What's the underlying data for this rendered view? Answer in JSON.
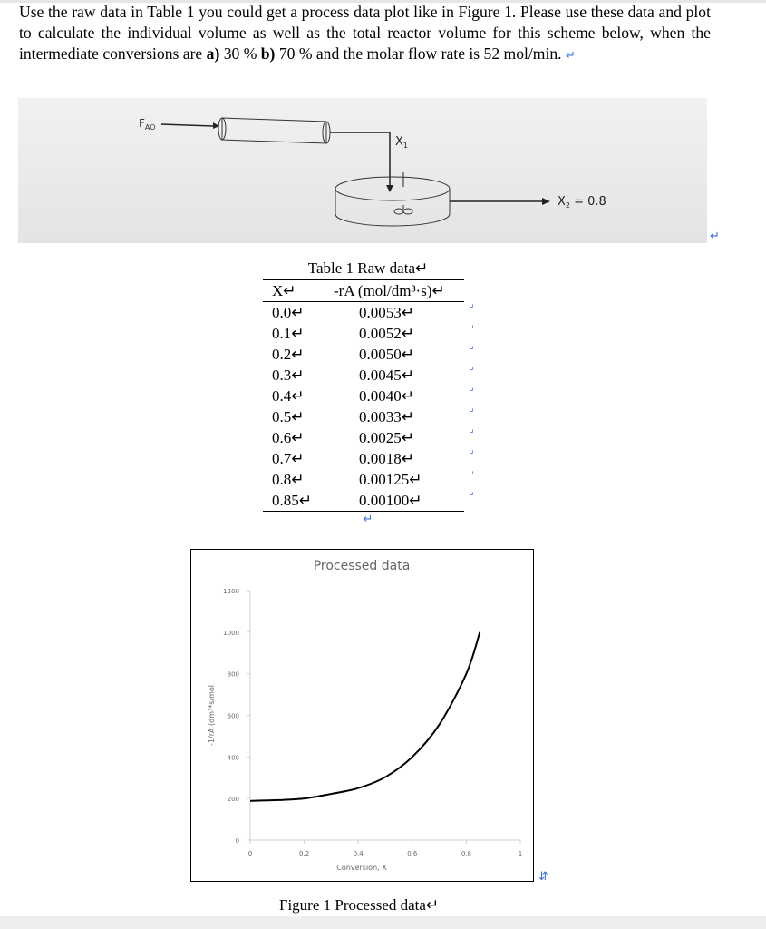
{
  "paragraph": {
    "text": "Use the raw data in Table 1 you could get a process data plot like in Figure 1. Please use these data and plot to calculate the individual volume as well as the total reactor volume for this scheme below, when the intermediate conversions are ",
    "a": "a)",
    "a_text": " 30 % ",
    "b": "b)",
    "b_text": " 70 % and the molar flow rate is 52 mol/min. ",
    "return_mark": "↵"
  },
  "diagram": {
    "feed_label": "F",
    "feed_sub": "AO",
    "x1_label": "X",
    "x1_sub": "1",
    "x2_label": "X",
    "x2_sub": "2",
    "x2_value": " = 0.8"
  },
  "table": {
    "caption": "Table 1 Raw data↵",
    "headers": [
      "X↵",
      "-rA (mol/dm³·s)↵"
    ],
    "rows": [
      [
        "0.0↵",
        "0.0053↵"
      ],
      [
        "0.1↵",
        "0.0052↵"
      ],
      [
        "0.2↵",
        "0.0050↵"
      ],
      [
        "0.3↵",
        "0.0045↵"
      ],
      [
        "0.4↵",
        "0.0040↵"
      ],
      [
        "0.5↵",
        "0.0033↵"
      ],
      [
        "0.6↵",
        "0.0025↵"
      ],
      [
        "0.7↵",
        "0.0018↵"
      ],
      [
        "0.8↵",
        "0.00125↵"
      ],
      [
        "0.85↵",
        "0.00100↵"
      ]
    ],
    "after_mark": "↵"
  },
  "chart_data": {
    "type": "line",
    "title": "Processed data",
    "xlabel": "Conversion, X",
    "ylabel": "-1/rA (dm³*s/mol",
    "xlim": [
      0,
      1
    ],
    "ylim": [
      0,
      1200
    ],
    "xticks": [
      "0",
      "0.2",
      "0.4",
      "0.6",
      "0.8",
      "1"
    ],
    "yticks": [
      "0",
      "200",
      "400",
      "600",
      "800",
      "1000",
      "1200"
    ],
    "x": [
      0,
      0.1,
      0.2,
      0.3,
      0.4,
      0.5,
      0.6,
      0.7,
      0.8,
      0.85
    ],
    "y": [
      188.7,
      192.3,
      200,
      222.2,
      250,
      303,
      400,
      555.6,
      800,
      1000
    ],
    "grid": false,
    "line_color": "#000000"
  },
  "figure_caption": "Figure 1 Processed data↵"
}
